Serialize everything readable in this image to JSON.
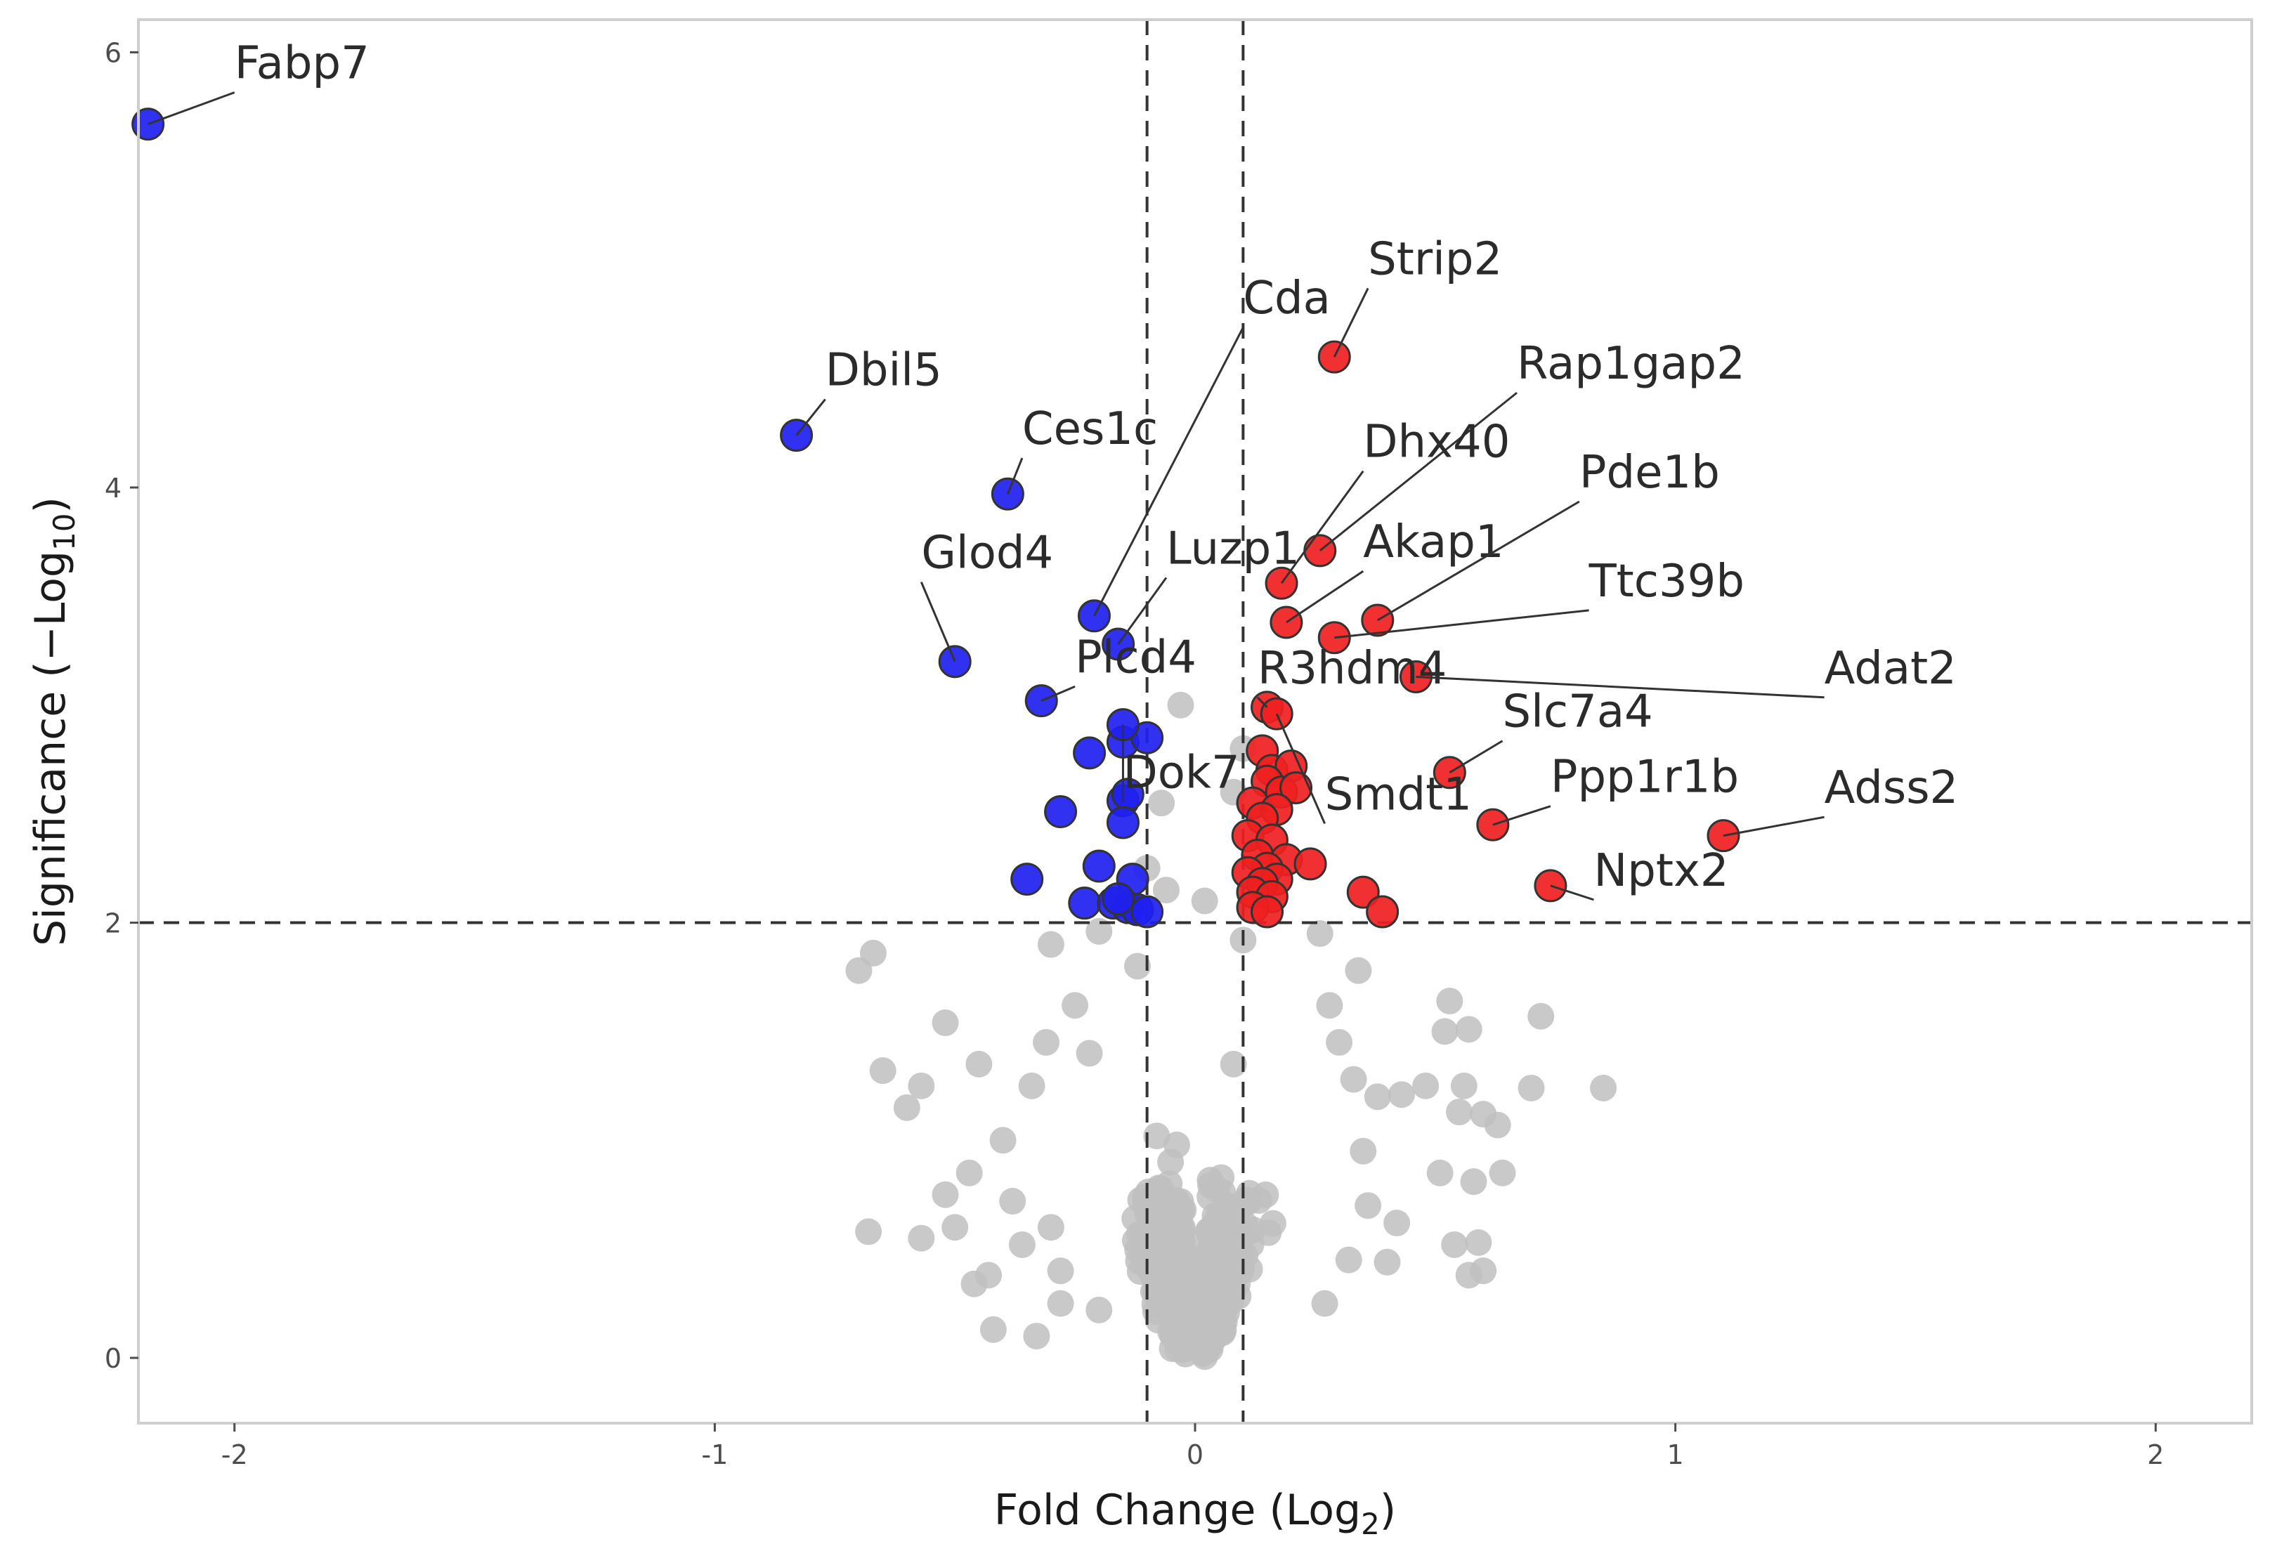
{
  "chart_data": {
    "type": "scatter",
    "title": "",
    "xlabel": "Fold Change (Log2)",
    "xlabel_main": "Fold Change (Log",
    "xlabel_sub": "2",
    "xlabel_tail": ")",
    "ylabel": "Significance (−Log10)",
    "ylabel_main": "Significance (−Log",
    "ylabel_sub": "10",
    "ylabel_tail": ")",
    "xlim": [
      -2.2,
      2.2
    ],
    "ylim": [
      -0.3,
      6.15
    ],
    "x_ticks": [
      -2,
      -1,
      0,
      1,
      2
    ],
    "x_tick_labels": [
      "-2",
      "-1",
      "0",
      "1",
      "2"
    ],
    "y_ticks": [
      0,
      2,
      4,
      6
    ],
    "y_tick_labels": [
      "0",
      "2",
      "4",
      "6"
    ],
    "thresholds": {
      "fold_change": [
        -0.1,
        0.1
      ],
      "significance": 2
    },
    "colors": {
      "down": "#2020f0",
      "up": "#f01f1f",
      "ns": "#c0c0c0",
      "outline": "#333333",
      "frame": "#cfcfcf",
      "threshold": "#333333"
    },
    "labeled_points": [
      {
        "gene": "Fabp7",
        "x": -2.18,
        "y": 5.67,
        "group": "down",
        "lx": -2.0,
        "ly": 5.88
      },
      {
        "gene": "Dbil5",
        "x": -0.83,
        "y": 4.24,
        "group": "down",
        "lx": -0.77,
        "ly": 4.47
      },
      {
        "gene": "Ces1c",
        "x": -0.39,
        "y": 3.97,
        "group": "down",
        "lx": -0.36,
        "ly": 4.2
      },
      {
        "gene": "Glod4",
        "x": -0.5,
        "y": 3.2,
        "group": "down",
        "lx": -0.57,
        "ly": 3.63
      },
      {
        "gene": "Cda",
        "x": -0.21,
        "y": 3.41,
        "group": "down",
        "lx": 0.1,
        "ly": 4.8
      },
      {
        "gene": "Luzp1",
        "x": -0.16,
        "y": 3.28,
        "group": "down",
        "lx": -0.06,
        "ly": 3.65
      },
      {
        "gene": "Plcd4",
        "x": -0.32,
        "y": 3.02,
        "group": "down",
        "lx": -0.25,
        "ly": 3.15
      },
      {
        "gene": "Dok7",
        "x": -0.15,
        "y": 2.91,
        "group": "down",
        "lx": -0.15,
        "ly": 2.62
      },
      {
        "gene": "Strip2",
        "x": 0.29,
        "y": 4.6,
        "group": "up",
        "lx": 0.36,
        "ly": 4.98
      },
      {
        "gene": "Rap1gap2",
        "x": 0.26,
        "y": 3.71,
        "group": "up",
        "lx": 0.67,
        "ly": 4.5
      },
      {
        "gene": "Dhx40",
        "x": 0.18,
        "y": 3.56,
        "group": "up",
        "lx": 0.35,
        "ly": 4.14
      },
      {
        "gene": "Akap1",
        "x": 0.19,
        "y": 3.38,
        "group": "up",
        "lx": 0.35,
        "ly": 3.68
      },
      {
        "gene": "Pde1b",
        "x": 0.38,
        "y": 3.39,
        "group": "up",
        "lx": 0.8,
        "ly": 4.0
      },
      {
        "gene": "Ttc39b",
        "x": 0.29,
        "y": 3.31,
        "group": "up",
        "lx": 0.82,
        "ly": 3.5
      },
      {
        "gene": "R3hdm4",
        "x": 0.15,
        "y": 2.99,
        "group": "up",
        "lx": 0.13,
        "ly": 3.1
      },
      {
        "gene": "Adat2",
        "x": 0.46,
        "y": 3.13,
        "group": "up",
        "lx": 1.31,
        "ly": 3.1
      },
      {
        "gene": "Slc7a4",
        "x": 0.53,
        "y": 2.69,
        "group": "up",
        "lx": 0.64,
        "ly": 2.9
      },
      {
        "gene": "Smdt1",
        "x": 0.17,
        "y": 2.96,
        "group": "up",
        "lx": 0.27,
        "ly": 2.52
      },
      {
        "gene": "Ppp1r1b",
        "x": 0.62,
        "y": 2.45,
        "group": "up",
        "lx": 0.74,
        "ly": 2.6
      },
      {
        "gene": "Adss2",
        "x": 1.1,
        "y": 2.4,
        "group": "up",
        "lx": 1.31,
        "ly": 2.55
      },
      {
        "gene": "Nptx2",
        "x": 0.74,
        "y": 2.17,
        "group": "up",
        "lx": 0.83,
        "ly": 2.17
      }
    ],
    "down_points": [
      [
        -0.15,
        2.83
      ],
      [
        -0.1,
        2.85
      ],
      [
        -0.22,
        2.78
      ],
      [
        -0.15,
        2.56
      ],
      [
        -0.14,
        2.59
      ],
      [
        -0.28,
        2.51
      ],
      [
        -0.15,
        2.46
      ],
      [
        -0.2,
        2.26
      ],
      [
        -0.35,
        2.2
      ],
      [
        -0.13,
        2.2
      ],
      [
        -0.23,
        2.09
      ],
      [
        -0.17,
        2.09
      ],
      [
        -0.14,
        2.07
      ],
      [
        -0.12,
        2.06
      ],
      [
        -0.1,
        2.05
      ],
      [
        -0.16,
        2.11
      ]
    ],
    "up_points": [
      [
        0.14,
        2.79
      ],
      [
        0.16,
        2.7
      ],
      [
        0.2,
        2.72
      ],
      [
        0.15,
        2.65
      ],
      [
        0.18,
        2.6
      ],
      [
        0.21,
        2.62
      ],
      [
        0.12,
        2.55
      ],
      [
        0.17,
        2.52
      ],
      [
        0.14,
        2.48
      ],
      [
        0.11,
        2.4
      ],
      [
        0.16,
        2.38
      ],
      [
        0.13,
        2.31
      ],
      [
        0.19,
        2.29
      ],
      [
        0.24,
        2.27
      ],
      [
        0.15,
        2.25
      ],
      [
        0.11,
        2.23
      ],
      [
        0.17,
        2.2
      ],
      [
        0.14,
        2.18
      ],
      [
        0.12,
        2.14
      ],
      [
        0.16,
        2.12
      ],
      [
        0.35,
        2.14
      ],
      [
        0.39,
        2.05
      ],
      [
        0.12,
        2.07
      ],
      [
        0.15,
        2.05
      ]
    ],
    "ns_points": [
      [
        0.85,
        1.24
      ],
      [
        0.72,
        1.57
      ],
      [
        0.7,
        1.24
      ],
      [
        0.63,
        1.07
      ],
      [
        0.64,
        0.85
      ],
      [
        0.56,
        1.25
      ],
      [
        0.53,
        1.64
      ],
      [
        0.52,
        1.5
      ],
      [
        0.57,
        1.51
      ],
      [
        0.6,
        1.12
      ],
      [
        0.55,
        1.13
      ],
      [
        0.51,
        0.85
      ],
      [
        0.58,
        0.81
      ],
      [
        0.54,
        0.52
      ],
      [
        0.59,
        0.53
      ],
      [
        0.57,
        0.38
      ],
      [
        0.6,
        0.4
      ],
      [
        0.48,
        1.25
      ],
      [
        0.43,
        1.21
      ],
      [
        0.42,
        0.62
      ],
      [
        0.4,
        0.44
      ],
      [
        -0.67,
        1.86
      ],
      [
        -0.7,
        1.78
      ],
      [
        -0.65,
        1.32
      ],
      [
        -0.6,
        1.15
      ],
      [
        -0.57,
        1.25
      ],
      [
        -0.52,
        1.54
      ],
      [
        -0.52,
        0.75
      ],
      [
        -0.57,
        0.55
      ],
      [
        -0.5,
        0.6
      ],
      [
        -0.47,
        0.85
      ],
      [
        -0.46,
        0.34
      ],
      [
        -0.43,
        0.38
      ],
      [
        -0.42,
        0.13
      ],
      [
        -0.4,
        1.0
      ],
      [
        -0.38,
        0.72
      ],
      [
        -0.36,
        0.52
      ],
      [
        -0.33,
        0.1
      ],
      [
        -0.3,
        0.6
      ],
      [
        -0.28,
        0.4
      ],
      [
        -0.68,
        0.58
      ],
      [
        -0.45,
        1.35
      ],
      [
        -0.34,
        1.25
      ],
      [
        -0.31,
        1.45
      ],
      [
        -0.28,
        0.25
      ],
      [
        -0.25,
        1.62
      ],
      [
        -0.22,
        1.4
      ],
      [
        -0.2,
        0.22
      ],
      [
        0.28,
        1.62
      ],
      [
        0.3,
        1.45
      ],
      [
        0.33,
        1.28
      ],
      [
        0.35,
        0.95
      ],
      [
        0.36,
        0.7
      ],
      [
        0.32,
        0.45
      ],
      [
        0.27,
        0.25
      ],
      [
        0.38,
        1.2
      ],
      [
        0.34,
        1.78
      ],
      [
        0.26,
        1.95
      ],
      [
        -0.3,
        1.9
      ],
      [
        -0.2,
        1.96
      ],
      [
        -0.08,
        1.02
      ],
      [
        -0.06,
        0.6
      ],
      [
        -0.05,
        0.4
      ],
      [
        0.06,
        0.55
      ],
      [
        0.08,
        1.35
      ],
      [
        0.07,
        0.28
      ],
      [
        -0.12,
        1.8
      ],
      [
        0.1,
        1.92
      ],
      [
        -0.07,
        2.55
      ],
      [
        -0.03,
        3.0
      ],
      [
        0.08,
        2.6
      ],
      [
        0.1,
        2.8
      ],
      [
        -0.06,
        2.15
      ],
      [
        0.02,
        2.1
      ],
      [
        -0.1,
        2.25
      ]
    ],
    "ns_cloud": {
      "description": "dense cloud of non-significant genes",
      "left_lobe_center": [
        -0.18,
        0.9
      ],
      "right_lobe_center": [
        0.18,
        0.9
      ]
    }
  }
}
